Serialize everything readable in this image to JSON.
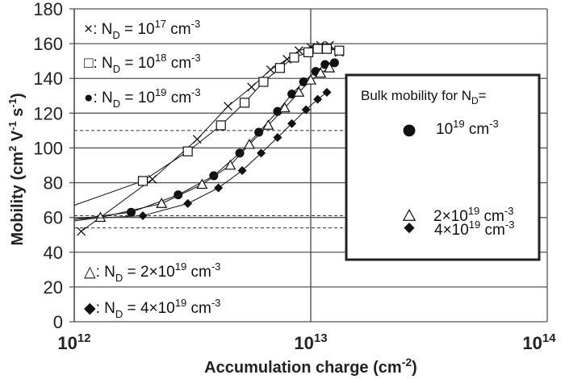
{
  "chart_data": {
    "type": "scatter",
    "xlabel": "Accumulation charge (cm-2)",
    "xlabel_parts": {
      "main": "Accumulation charge (cm",
      "sup": "-2",
      "end": ")"
    },
    "ylabel_parts": {
      "a": "Mobility (cm",
      "sup1": "2",
      "b": " V",
      "sup2": "-1",
      "c": " s",
      "sup3": "-1",
      "d": ")"
    },
    "xscale": "log",
    "xlim": [
      1000000000000.0,
      100000000000000.0
    ],
    "ylim": [
      0,
      180
    ],
    "grid": true,
    "x_ticks": [
      {
        "base": "10",
        "exp": "12"
      },
      {
        "base": "10",
        "exp": "13"
      },
      {
        "base": "10",
        "exp": "14"
      }
    ],
    "y_ticks": [
      "0",
      "20",
      "40",
      "60",
      "80",
      "100",
      "120",
      "140",
      "160",
      "180"
    ],
    "series": [
      {
        "name": "×: ND = 10^17 cm^-3",
        "marker": "cross",
        "line_start": null,
        "x": [
          1070000000000.0,
          2140000000000.0,
          3310000000000.0,
          4470000000000.0,
          5620000000000.0,
          6760000000000.0,
          7940000000000.0,
          8910000000000.0,
          10000000000000.0,
          11000000000000.0,
          12000000000000.0,
          13200000000000.0
        ],
        "y": [
          52,
          82,
          105,
          124,
          135,
          145,
          151,
          156,
          158,
          159,
          159,
          155
        ]
      },
      {
        "name": "□: ND = 10^18 cm^-3",
        "marker": "square",
        "line_start": 67,
        "x": [
          1950000000000.0,
          3020000000000.0,
          4170000000000.0,
          5250000000000.0,
          6310000000000.0,
          7410000000000.0,
          8510000000000.0,
          9770000000000.0,
          10700000000000.0,
          11700000000000.0,
          13200000000000.0
        ],
        "y": [
          81,
          98,
          113,
          126,
          138,
          146,
          152,
          155,
          157,
          157,
          156
        ]
      },
      {
        "name": "●: ND = 10^19 cm^-3",
        "marker": "circle",
        "line_start": 59,
        "x": [
          1740000000000.0,
          2750000000000.0,
          3890000000000.0,
          5010000000000.0,
          6030000000000.0,
          7240000000000.0,
          8320000000000.0,
          9330000000000.0,
          10500000000000.0,
          11500000000000.0,
          12600000000000.0
        ],
        "y": [
          63,
          73,
          84,
          97,
          109,
          121,
          131,
          138,
          144,
          148,
          149
        ]
      },
      {
        "name": "△: ND = 2×10^19 cm^-3",
        "marker": "triangle",
        "line_start": 58,
        "x": [
          1290000000000.0,
          2340000000000.0,
          3470000000000.0,
          4570000000000.0,
          5500000000000.0,
          6610000000000.0,
          7760000000000.0,
          8910000000000.0,
          10000000000000.0,
          11000000000000.0,
          12000000000000.0
        ],
        "y": [
          60,
          68,
          79,
          90,
          102,
          113,
          123,
          132,
          139,
          143,
          146
        ]
      },
      {
        "name": "◆: ND = 4×10^19 cm^-3",
        "marker": "diamond",
        "line_start": 59,
        "x": [
          1950000000000.0,
          3020000000000.0,
          4070000000000.0,
          5130000000000.0,
          6170000000000.0,
          7240000000000.0,
          8320000000000.0,
          9550000000000.0,
          10700000000000.0,
          11700000000000.0
        ],
        "y": [
          61,
          68,
          77,
          87,
          97,
          106,
          114,
          122,
          128,
          132
        ]
      }
    ],
    "bulk_mobility": [
      {
        "marker": "circle",
        "value": 110,
        "label": {
          "a": "10",
          "sup": "19",
          "b": " cm",
          "sup2": "-3"
        }
      },
      {
        "marker": "triangle",
        "value": 61,
        "label": {
          "a": "2×10",
          "sup": "19",
          "b": " cm",
          "sup2": "-3"
        }
      },
      {
        "marker": "diamond",
        "value": 54,
        "label": {
          "a": "4×10",
          "sup": "19",
          "b": " cm",
          "sup2": "-3"
        }
      }
    ],
    "legend": [
      {
        "sym": "×: N",
        "sub": "D",
        "eq": " = ",
        "base": "10",
        "exp": "17",
        "unit": " cm",
        "uexp": "-3"
      },
      {
        "sym": "□: N",
        "sub": "D",
        "eq": " = ",
        "base": "10",
        "exp": "18",
        "unit": " cm",
        "uexp": "-3"
      },
      {
        "sym": "●: N",
        "sub": "D",
        "eq": " = ",
        "base": "10",
        "exp": "19",
        "unit": " cm",
        "uexp": "-3"
      },
      {
        "sym": "△: N",
        "sub": "D",
        "eq": " = ",
        "base": "2×10",
        "exp": "19",
        "unit": " cm",
        "uexp": "-3"
      },
      {
        "sym": "◆: N",
        "sub": "D",
        "eq": " = ",
        "base": "4×10",
        "exp": "19",
        "unit": " cm",
        "uexp": "-3"
      }
    ],
    "bulk_box_title": {
      "a": "Bulk mobility for N",
      "sub": "D",
      "b": "="
    }
  }
}
